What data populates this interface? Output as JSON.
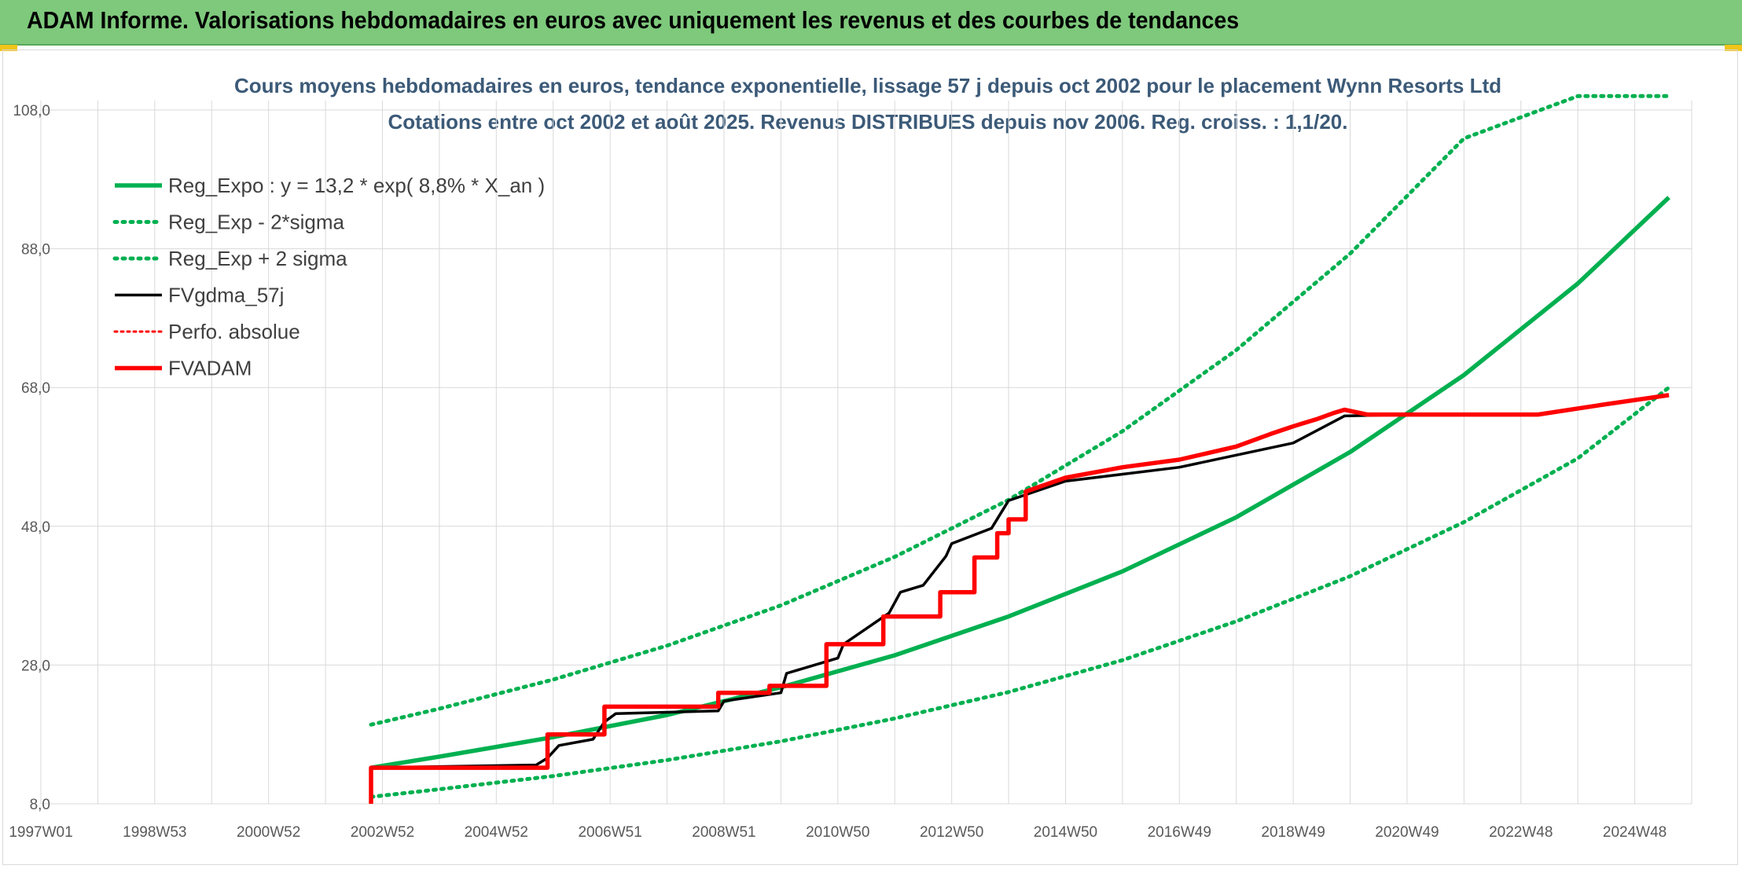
{
  "banner": {
    "title": "ADAM Informe. Valorisations hebdomadaires en euros avec uniquement les revenus et des courbes de tendances"
  },
  "colors": {
    "banner_bg": "#7ec97c",
    "green": "#00b050",
    "red": "#ff0000",
    "black": "#000000",
    "title": "#3c5a78",
    "grid": "#d9d9d9"
  },
  "chart_data": {
    "type": "line",
    "title_lines": [
      "Cours moyens hebdomadaires en euros, tendance exponentielle, lissage 57 j depuis oct 2002 pour le placement Wynn Resorts Ltd",
      "Cotations entre oct 2002 et août 2025. Revenus DISTRIBUES depuis nov 2006. Reg. croiss. : 1,1/20."
    ],
    "x_tick_labels": [
      "1997W01",
      "1998W53",
      "2000W52",
      "2002W52",
      "2004W52",
      "2006W51",
      "2008W51",
      "2010W50",
      "2012W50",
      "2014W50",
      "2016W49",
      "2018W49",
      "2020W49",
      "2022W48",
      "2024W48"
    ],
    "x_range": [
      1997.0,
      2026.0
    ],
    "y_tick_labels": [
      "8,0",
      "28,0",
      "48,0",
      "68,0",
      "88,0",
      "108,0"
    ],
    "y_ticks": [
      8,
      28,
      48,
      68,
      88,
      108
    ],
    "ylim": [
      8,
      110
    ],
    "grid": true,
    "legend_position": "top-left",
    "series": [
      {
        "name": "Reg_Expo : y = 13,2 * exp( 8,8% *  X_an )",
        "style": "solid-green",
        "x": [
          2002.8,
          2004,
          2006,
          2008,
          2010,
          2012,
          2014,
          2016,
          2018,
          2020,
          2022,
          2024,
          2025.6
        ],
        "y": [
          13.2,
          14.8,
          17.6,
          20.8,
          24.8,
          29.4,
          35.0,
          41.5,
          49.3,
          58.7,
          69.8,
          83.0,
          95.4
        ]
      },
      {
        "name": "Reg_Exp - 2*sigma",
        "style": "dotted-green",
        "x": [
          2002.8,
          2004,
          2006,
          2008,
          2010,
          2012,
          2014,
          2016,
          2018,
          2020,
          2022,
          2024,
          2025.6
        ],
        "y": [
          9.0,
          10.1,
          12.0,
          14.3,
          17.0,
          20.3,
          24.1,
          28.7,
          34.3,
          40.8,
          48.6,
          57.8,
          68.0
        ]
      },
      {
        "name": "Reg_Exp + 2 sigma",
        "style": "dotted-green",
        "x": [
          2002.8,
          2004,
          2006,
          2008,
          2010,
          2012,
          2014,
          2016,
          2018,
          2020,
          2022,
          2024,
          2025.6
        ],
        "y": [
          19.4,
          21.7,
          25.9,
          30.8,
          36.6,
          43.6,
          51.8,
          61.7,
          73.4,
          87.3,
          103.9,
          110,
          110
        ]
      },
      {
        "name": "FVgdma_57j",
        "style": "solid-black",
        "x": [
          2002.8,
          2005.7,
          2005.9,
          2006.1,
          2006.7,
          2006.9,
          2007.1,
          2008.9,
          2009.0,
          2010.0,
          2010.1,
          2011.0,
          2011.1,
          2011.9,
          2012.1,
          2012.5,
          2012.9,
          2013.0,
          2013.7,
          2014.0,
          2015.0,
          2017.0,
          2019.0,
          2019.9,
          2021.0,
          2023.3,
          2024.5,
          2025.6
        ],
        "y": [
          13.2,
          13.6,
          14.6,
          16.4,
          17.3,
          19.8,
          21.0,
          21.4,
          22.8,
          24.0,
          26.8,
          29.0,
          31.0,
          35.5,
          38.5,
          39.5,
          43.7,
          45.5,
          47.7,
          51.7,
          54.5,
          56.5,
          60.0,
          63.9,
          64.1,
          64.1,
          65.5,
          66.9
        ]
      },
      {
        "name": "Perfo. absolue",
        "style": "dotted-red",
        "x": [],
        "y": []
      },
      {
        "name": "FVADAM",
        "style": "solid-red",
        "x": [
          2002.8,
          2002.8,
          2005.9,
          2005.9,
          2006.9,
          2006.9,
          2008.9,
          2008.9,
          2009.8,
          2009.8,
          2010.8,
          2010.8,
          2011.8,
          2011.8,
          2012.8,
          2012.8,
          2013.4,
          2013.4,
          2013.8,
          2013.8,
          2014.0,
          2014.0,
          2014.3,
          2014.3,
          2015.0,
          2016.0,
          2017.0,
          2018.0,
          2018.6,
          2019.0,
          2019.4,
          2019.7,
          2019.9,
          2020.3,
          2023.3,
          2024.5,
          2025.6
        ],
        "y": [
          8.0,
          13.2,
          13.2,
          18.0,
          18.0,
          22.0,
          22.0,
          24.0,
          24.0,
          25.0,
          25.0,
          31.0,
          31.0,
          35.0,
          35.0,
          38.5,
          38.5,
          43.5,
          43.5,
          47.0,
          47.0,
          49.0,
          49.0,
          53.0,
          55.0,
          56.5,
          57.6,
          59.5,
          61.3,
          62.4,
          63.4,
          64.3,
          64.8,
          64.1,
          64.1,
          65.6,
          66.9
        ]
      }
    ]
  }
}
